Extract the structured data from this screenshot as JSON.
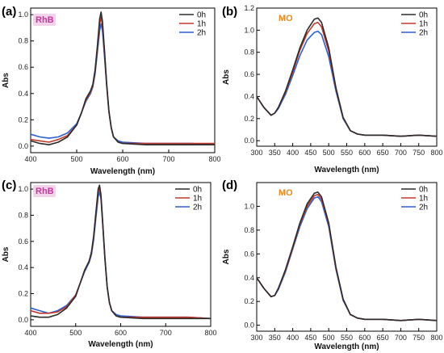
{
  "chart_data": [
    {
      "panel_label": "(a)",
      "type": "line",
      "annotation": "RhB",
      "annotation_color": "#c2399a",
      "annotation_bg": "#f3d3ec",
      "xlabel": "Wavelength (nm)",
      "ylabel": "Abs",
      "xlim": [
        400,
        800
      ],
      "ylim": [
        -0.05,
        1.05
      ],
      "xticks": [
        400,
        500,
        600,
        700,
        800
      ],
      "yticks": [
        0.0,
        0.2,
        0.4,
        0.6,
        0.8,
        1.0
      ],
      "ytick_labels": [
        "0.0",
        "0.2",
        "0.4",
        "0.6",
        "0.8",
        "1.0"
      ],
      "legend_position": "top-right",
      "grid": false,
      "x": [
        400,
        420,
        440,
        460,
        480,
        500,
        510,
        520,
        530,
        535,
        540,
        545,
        550,
        553,
        556,
        560,
        565,
        570,
        575,
        580,
        590,
        600,
        650,
        700,
        750,
        800
      ],
      "series": [
        {
          "name": "0h",
          "color": "#2b2b2b",
          "values": [
            0.04,
            0.02,
            0.01,
            0.03,
            0.07,
            0.16,
            0.25,
            0.36,
            0.42,
            0.47,
            0.58,
            0.76,
            0.97,
            1.02,
            0.95,
            0.75,
            0.48,
            0.27,
            0.14,
            0.07,
            0.03,
            0.02,
            0.01,
            0.01,
            0.01,
            0.01
          ]
        },
        {
          "name": "1h",
          "color": "#c0392b",
          "values": [
            0.05,
            0.04,
            0.03,
            0.05,
            0.08,
            0.16,
            0.25,
            0.35,
            0.41,
            0.46,
            0.57,
            0.74,
            0.93,
            0.98,
            0.92,
            0.73,
            0.47,
            0.26,
            0.14,
            0.07,
            0.03,
            0.02,
            0.02,
            0.02,
            0.02,
            0.02
          ]
        },
        {
          "name": "2h",
          "color": "#2d5fd3",
          "values": [
            0.09,
            0.07,
            0.06,
            0.07,
            0.1,
            0.17,
            0.25,
            0.34,
            0.4,
            0.45,
            0.55,
            0.71,
            0.88,
            0.93,
            0.88,
            0.7,
            0.46,
            0.26,
            0.14,
            0.07,
            0.04,
            0.03,
            0.02,
            0.02,
            0.02,
            0.01
          ]
        }
      ]
    },
    {
      "panel_label": "(b)",
      "type": "line",
      "annotation": "MO",
      "annotation_color": "#e88a1a",
      "annotation_bg": "",
      "xlabel": "Wavelength (nm)",
      "ylabel": "Abs",
      "xlim": [
        300,
        800
      ],
      "ylim": [
        -0.05,
        1.2
      ],
      "xticks": [
        300,
        350,
        400,
        450,
        500,
        550,
        600,
        650,
        700,
        750,
        800
      ],
      "yticks": [
        0.0,
        0.2,
        0.4,
        0.6,
        0.8,
        1.0,
        1.2
      ],
      "ytick_labels": [
        "0.0",
        "0.2",
        "0.4",
        "0.6",
        "0.8",
        "1.0",
        "1.2"
      ],
      "legend_position": "top-right",
      "grid": false,
      "x": [
        300,
        320,
        340,
        350,
        360,
        380,
        400,
        420,
        440,
        460,
        470,
        480,
        500,
        520,
        540,
        560,
        580,
        600,
        650,
        700,
        750,
        800
      ],
      "series": [
        {
          "name": "0h",
          "color": "#2b2b2b",
          "values": [
            0.4,
            0.3,
            0.23,
            0.25,
            0.3,
            0.45,
            0.64,
            0.84,
            1.0,
            1.1,
            1.11,
            1.07,
            0.84,
            0.48,
            0.21,
            0.09,
            0.06,
            0.05,
            0.05,
            0.04,
            0.05,
            0.04
          ]
        },
        {
          "name": "1h",
          "color": "#c0392b",
          "values": [
            0.4,
            0.3,
            0.23,
            0.25,
            0.3,
            0.44,
            0.62,
            0.82,
            0.97,
            1.06,
            1.07,
            1.03,
            0.81,
            0.47,
            0.21,
            0.09,
            0.06,
            0.05,
            0.05,
            0.04,
            0.05,
            0.04
          ]
        },
        {
          "name": "2h",
          "color": "#2d5fd3",
          "values": [
            0.4,
            0.3,
            0.23,
            0.25,
            0.29,
            0.42,
            0.59,
            0.77,
            0.91,
            0.98,
            0.99,
            0.96,
            0.76,
            0.45,
            0.2,
            0.09,
            0.06,
            0.05,
            0.05,
            0.04,
            0.05,
            0.04
          ]
        }
      ]
    },
    {
      "panel_label": "(c)",
      "type": "line",
      "annotation": "RhB",
      "annotation_color": "#c2399a",
      "annotation_bg": "#f3d3ec",
      "xlabel": "Wavelength (nm)",
      "ylabel": "Abs",
      "xlim": [
        400,
        800
      ],
      "ylim": [
        -0.05,
        1.05
      ],
      "xticks": [
        400,
        500,
        600,
        700,
        800
      ],
      "yticks": [
        0.0,
        0.2,
        0.4,
        0.6,
        0.8,
        1.0
      ],
      "ytick_labels": [
        "0.0",
        "0.2",
        "0.4",
        "0.6",
        "0.8",
        "1.0"
      ],
      "legend_position": "top-right",
      "grid": false,
      "x": [
        400,
        420,
        440,
        460,
        480,
        500,
        510,
        520,
        530,
        535,
        540,
        545,
        550,
        553,
        556,
        560,
        565,
        570,
        575,
        580,
        590,
        600,
        650,
        700,
        750,
        800
      ],
      "series": [
        {
          "name": "0h",
          "color": "#2b2b2b",
          "values": [
            0.03,
            0.02,
            0.02,
            0.04,
            0.09,
            0.18,
            0.28,
            0.38,
            0.45,
            0.52,
            0.64,
            0.82,
            1.0,
            1.03,
            0.96,
            0.75,
            0.47,
            0.25,
            0.13,
            0.07,
            0.03,
            0.02,
            0.01,
            0.01,
            0.01,
            0.01
          ]
        },
        {
          "name": "1h",
          "color": "#c0392b",
          "values": [
            0.07,
            0.05,
            0.05,
            0.06,
            0.1,
            0.19,
            0.28,
            0.38,
            0.45,
            0.51,
            0.63,
            0.81,
            0.98,
            1.01,
            0.95,
            0.74,
            0.47,
            0.25,
            0.13,
            0.07,
            0.03,
            0.02,
            0.02,
            0.02,
            0.02,
            0.01
          ]
        },
        {
          "name": "2h",
          "color": "#2d5fd3",
          "values": [
            0.09,
            0.07,
            0.05,
            0.07,
            0.11,
            0.19,
            0.28,
            0.37,
            0.44,
            0.5,
            0.61,
            0.78,
            0.94,
            0.98,
            0.93,
            0.73,
            0.46,
            0.25,
            0.13,
            0.07,
            0.04,
            0.03,
            0.02,
            0.02,
            0.02,
            0.01
          ]
        }
      ]
    },
    {
      "panel_label": "(d)",
      "type": "line",
      "annotation": "MO",
      "annotation_color": "#e88a1a",
      "annotation_bg": "",
      "xlabel": "Wavelength (nm)",
      "ylabel": "Abs",
      "xlim": [
        300,
        800
      ],
      "ylim": [
        -0.05,
        1.2
      ],
      "xticks": [
        300,
        350,
        400,
        450,
        500,
        550,
        600,
        650,
        700,
        750,
        800
      ],
      "yticks": [
        0.0,
        0.2,
        0.4,
        0.6,
        0.8,
        1.0
      ],
      "ytick_labels": [
        "0.0",
        "0.2",
        "0.4",
        "0.6",
        "0.8",
        "1.0"
      ],
      "legend_position": "top-right",
      "grid": false,
      "x": [
        300,
        320,
        340,
        350,
        360,
        380,
        400,
        420,
        440,
        460,
        470,
        480,
        500,
        520,
        540,
        560,
        580,
        600,
        650,
        700,
        750,
        800
      ],
      "series": [
        {
          "name": "0h",
          "color": "#2b2b2b",
          "values": [
            0.4,
            0.31,
            0.24,
            0.25,
            0.31,
            0.47,
            0.66,
            0.86,
            1.02,
            1.11,
            1.12,
            1.08,
            0.86,
            0.49,
            0.22,
            0.09,
            0.06,
            0.05,
            0.05,
            0.04,
            0.05,
            0.04
          ]
        },
        {
          "name": "1h",
          "color": "#c0392b",
          "values": [
            0.4,
            0.31,
            0.24,
            0.25,
            0.31,
            0.46,
            0.65,
            0.85,
            1.0,
            1.09,
            1.1,
            1.06,
            0.85,
            0.48,
            0.22,
            0.09,
            0.06,
            0.05,
            0.05,
            0.04,
            0.05,
            0.04
          ]
        },
        {
          "name": "2h",
          "color": "#2d5fd3",
          "values": [
            0.4,
            0.31,
            0.24,
            0.25,
            0.3,
            0.45,
            0.64,
            0.83,
            0.98,
            1.07,
            1.08,
            1.04,
            0.83,
            0.47,
            0.21,
            0.09,
            0.06,
            0.05,
            0.05,
            0.04,
            0.05,
            0.04
          ]
        }
      ]
    }
  ]
}
